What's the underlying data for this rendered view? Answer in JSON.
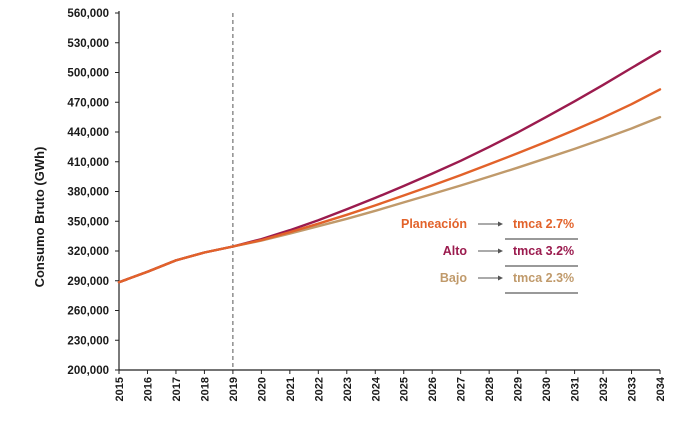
{
  "chart_data": {
    "type": "line",
    "title": "",
    "xlabel": "",
    "ylabel": "Consumo Bruto (GWh)",
    "x": [
      "2015",
      "2016",
      "2017",
      "2018",
      "2019",
      "2020",
      "2021",
      "2022",
      "2023",
      "2024",
      "2025",
      "2026",
      "2027",
      "2028",
      "2029",
      "2030",
      "2031",
      "2032",
      "2033",
      "2034"
    ],
    "ylim": [
      200000,
      560000
    ],
    "yticks": [
      "200,000",
      "230,000",
      "260,000",
      "290,000",
      "320,000",
      "350,000",
      "380,000",
      "410,000",
      "440,000",
      "470,000",
      "500,000",
      "530,000",
      "560,000"
    ],
    "ytick_values": [
      200000,
      230000,
      260000,
      290000,
      320000,
      350000,
      380000,
      410000,
      440000,
      470000,
      500000,
      530000,
      560000
    ],
    "grid": false,
    "divider_year": "2019",
    "series": [
      {
        "name": "Alto",
        "color": "#9b1b4e",
        "values": [
          288500,
          299000,
          310500,
          318500,
          324500,
          332000,
          341000,
          351000,
          362000,
          373500,
          385500,
          398000,
          411000,
          425000,
          439500,
          455000,
          471000,
          487500,
          504500,
          521500
        ]
      },
      {
        "name": "Planeación",
        "color": "#e2622a",
        "values": [
          288500,
          299000,
          310500,
          318500,
          324500,
          331000,
          339000,
          347500,
          356500,
          366000,
          376000,
          386000,
          396500,
          407500,
          418500,
          430000,
          442000,
          454500,
          468000,
          483000
        ]
      },
      {
        "name": "Bajo",
        "color": "#c09a6b",
        "values": [
          288500,
          299000,
          310500,
          318500,
          324500,
          330500,
          337500,
          345000,
          352500,
          360500,
          369000,
          377500,
          386000,
          395000,
          404000,
          413500,
          423000,
          433000,
          443500,
          455000
        ]
      }
    ],
    "annotations": [
      {
        "name": "Planeación",
        "tmca": "tmca 2.7%",
        "color": "#e2622a"
      },
      {
        "name": "Alto",
        "tmca": "tmca 3.2%",
        "color": "#9b1b4e"
      },
      {
        "name": "Bajo",
        "tmca": "tmca 2.3%",
        "color": "#c09a6b"
      }
    ]
  }
}
